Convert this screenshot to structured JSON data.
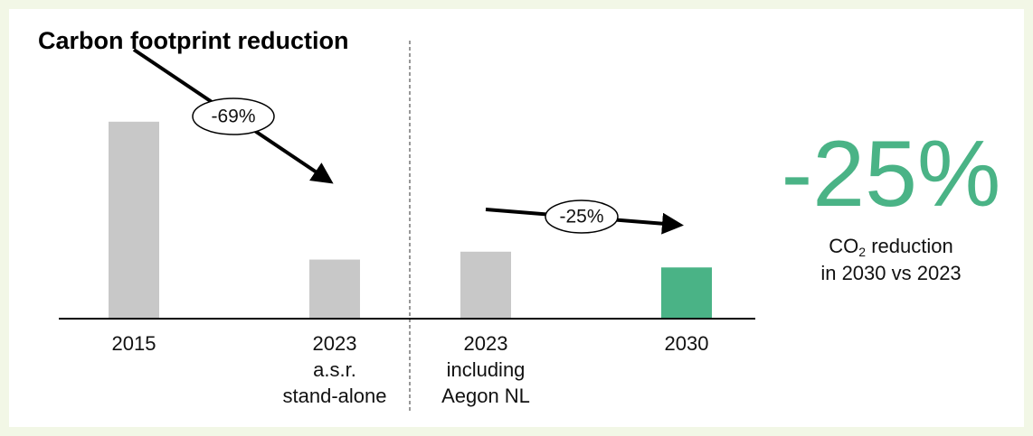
{
  "chart_data": {
    "type": "bar",
    "title": "Carbon footprint reduction",
    "categories": [
      "2015",
      "2023\na.s.r.\nstand-alone",
      "2023\nincluding\nAegon NL",
      "2030"
    ],
    "values": [
      100,
      30,
      34,
      26
    ],
    "colors": [
      "#c8c8c8",
      "#c8c8c8",
      "#c8c8c8",
      "#4ab386"
    ],
    "ylim": [
      0,
      110
    ],
    "annotations": [
      "-69%",
      "-25%"
    ],
    "headline": "-25%",
    "callout": {
      "main": "CO",
      "sub": "2",
      "rest": " reduction",
      "line2": "in 2030 vs 2023"
    }
  }
}
